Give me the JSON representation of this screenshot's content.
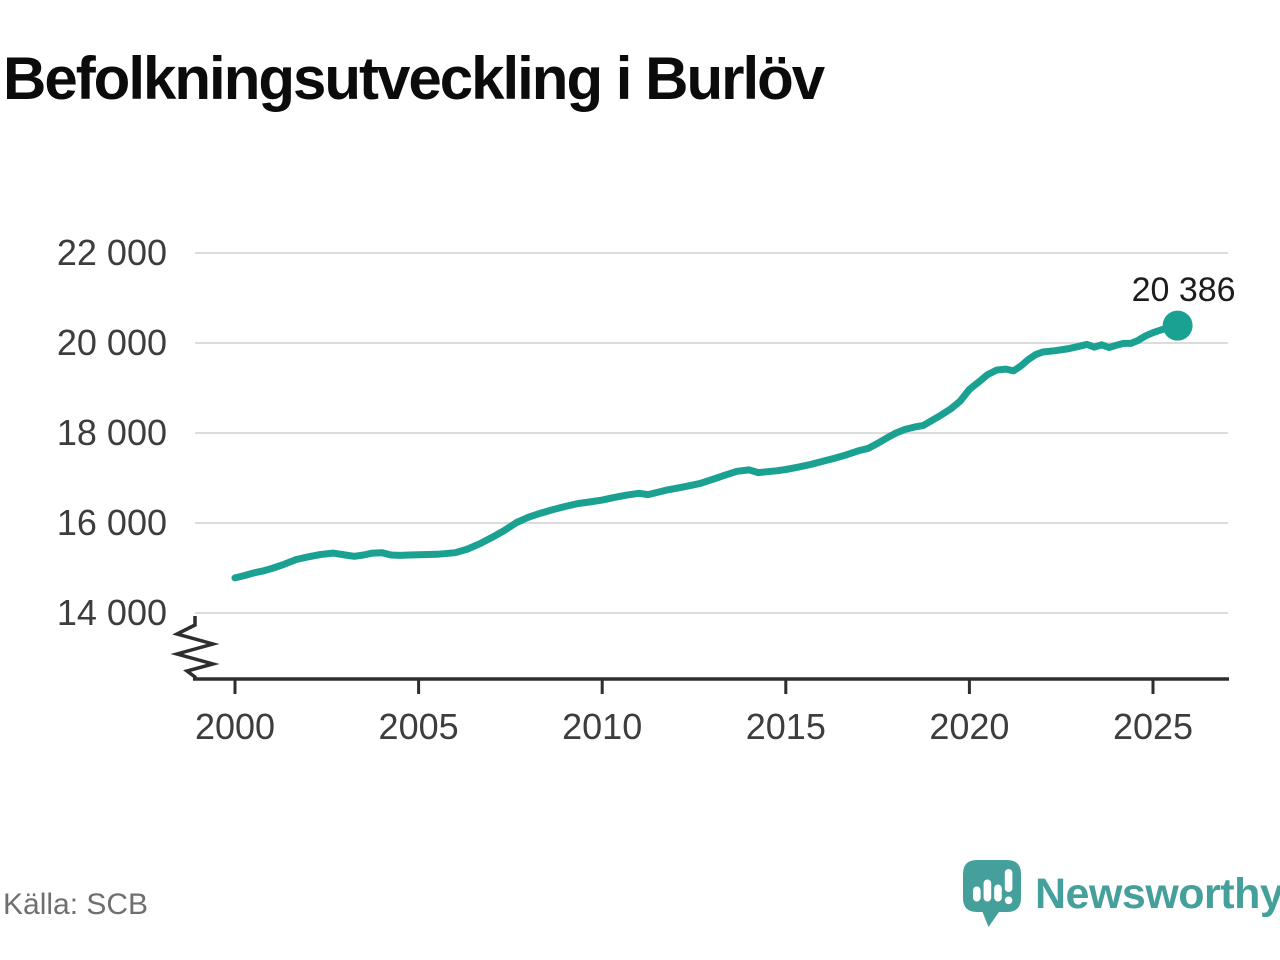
{
  "page": {
    "title": "Befolkningsutveckling i Burlöv",
    "source_label": "Källa: SCB"
  },
  "branding": {
    "logo_text": "Newsworthy",
    "logo_icon": "newsworthy-speech-bubble-barchart-icon"
  },
  "colors": {
    "background": "#ffffff",
    "line": "#1aa191",
    "end_dot": "#1aa191",
    "grid": "#dcdcdc",
    "axis": "#2e2e2e",
    "tick_label": "#3d3d3d",
    "title": "#0b0b0b",
    "annotation": "#1d1d1d",
    "source": "#6f6f6f",
    "logo": "#45a09b"
  },
  "chart_data": {
    "type": "line",
    "title": "Befolkningsutveckling i Burlöv",
    "source": "SCB",
    "grid": "horizontal",
    "legend": "none",
    "axis_break": true,
    "xlim": [
      1998.9,
      2027.0
    ],
    "ylim": [
      14000,
      22000
    ],
    "x_ticks": [
      2000,
      2005,
      2010,
      2015,
      2020,
      2025
    ],
    "x_tick_labels": [
      "2000",
      "2005",
      "2010",
      "2015",
      "2020",
      "2025"
    ],
    "y_ticks": [
      14000,
      16000,
      18000,
      20000,
      22000
    ],
    "y_tick_labels": [
      "14 000",
      "16 000",
      "18 000",
      "20 000",
      "22 000"
    ],
    "end_label": "20 386",
    "end_value": 20386,
    "series": [
      {
        "name": "Befolkning",
        "points": [
          [
            2000.0,
            14780
          ],
          [
            2000.25,
            14830
          ],
          [
            2000.5,
            14890
          ],
          [
            2000.75,
            14930
          ],
          [
            2001.0,
            14990
          ],
          [
            2001.33,
            15080
          ],
          [
            2001.67,
            15190
          ],
          [
            2002.0,
            15250
          ],
          [
            2002.33,
            15300
          ],
          [
            2002.67,
            15330
          ],
          [
            2003.0,
            15290
          ],
          [
            2003.25,
            15260
          ],
          [
            2003.5,
            15290
          ],
          [
            2003.75,
            15330
          ],
          [
            2004.0,
            15340
          ],
          [
            2004.25,
            15290
          ],
          [
            2004.5,
            15280
          ],
          [
            2004.75,
            15290
          ],
          [
            2005.0,
            15295
          ],
          [
            2005.5,
            15305
          ],
          [
            2006.0,
            15340
          ],
          [
            2006.33,
            15420
          ],
          [
            2006.67,
            15540
          ],
          [
            2007.0,
            15680
          ],
          [
            2007.33,
            15830
          ],
          [
            2007.67,
            16010
          ],
          [
            2008.0,
            16130
          ],
          [
            2008.33,
            16220
          ],
          [
            2008.67,
            16300
          ],
          [
            2009.0,
            16370
          ],
          [
            2009.33,
            16430
          ],
          [
            2009.67,
            16470
          ],
          [
            2010.0,
            16510
          ],
          [
            2010.33,
            16570
          ],
          [
            2010.67,
            16620
          ],
          [
            2011.0,
            16660
          ],
          [
            2011.25,
            16630
          ],
          [
            2011.5,
            16680
          ],
          [
            2011.75,
            16730
          ],
          [
            2012.0,
            16770
          ],
          [
            2012.33,
            16820
          ],
          [
            2012.67,
            16880
          ],
          [
            2013.0,
            16970
          ],
          [
            2013.33,
            17060
          ],
          [
            2013.67,
            17150
          ],
          [
            2014.0,
            17180
          ],
          [
            2014.25,
            17120
          ],
          [
            2014.5,
            17140
          ],
          [
            2014.75,
            17160
          ],
          [
            2015.0,
            17190
          ],
          [
            2015.33,
            17240
          ],
          [
            2015.67,
            17300
          ],
          [
            2016.0,
            17370
          ],
          [
            2016.33,
            17440
          ],
          [
            2016.67,
            17520
          ],
          [
            2017.0,
            17610
          ],
          [
            2017.25,
            17660
          ],
          [
            2017.5,
            17770
          ],
          [
            2017.75,
            17890
          ],
          [
            2018.0,
            18000
          ],
          [
            2018.25,
            18080
          ],
          [
            2018.5,
            18130
          ],
          [
            2018.75,
            18170
          ],
          [
            2019.0,
            18290
          ],
          [
            2019.25,
            18410
          ],
          [
            2019.5,
            18540
          ],
          [
            2019.75,
            18710
          ],
          [
            2020.0,
            18970
          ],
          [
            2020.25,
            19130
          ],
          [
            2020.5,
            19300
          ],
          [
            2020.75,
            19400
          ],
          [
            2021.0,
            19420
          ],
          [
            2021.2,
            19380
          ],
          [
            2021.4,
            19490
          ],
          [
            2021.6,
            19630
          ],
          [
            2021.8,
            19740
          ],
          [
            2022.0,
            19800
          ],
          [
            2022.33,
            19830
          ],
          [
            2022.67,
            19870
          ],
          [
            2023.0,
            19930
          ],
          [
            2023.2,
            19970
          ],
          [
            2023.4,
            19910
          ],
          [
            2023.6,
            19960
          ],
          [
            2023.8,
            19900
          ],
          [
            2024.0,
            19950
          ],
          [
            2024.2,
            19990
          ],
          [
            2024.4,
            19990
          ],
          [
            2024.6,
            20060
          ],
          [
            2024.8,
            20160
          ],
          [
            2025.0,
            20230
          ],
          [
            2025.25,
            20300
          ],
          [
            2025.5,
            20350
          ],
          [
            2025.67,
            20386
          ]
        ]
      }
    ]
  }
}
